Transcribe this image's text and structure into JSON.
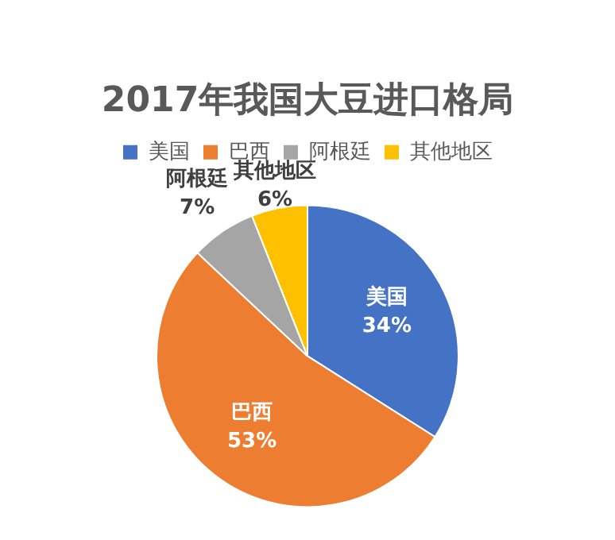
{
  "chart_data": {
    "type": "pie",
    "title": "2017年我国大豆进口格局",
    "categories": [
      "美国",
      "巴西",
      "阿根廷",
      "其他地区"
    ],
    "values": [
      34,
      53,
      7,
      6
    ],
    "colors": [
      "#4472c4",
      "#ed7d31",
      "#a5a5a5",
      "#ffc000"
    ],
    "value_labels": [
      "34%",
      "53%",
      "7%",
      "6%"
    ],
    "legend": "top"
  }
}
